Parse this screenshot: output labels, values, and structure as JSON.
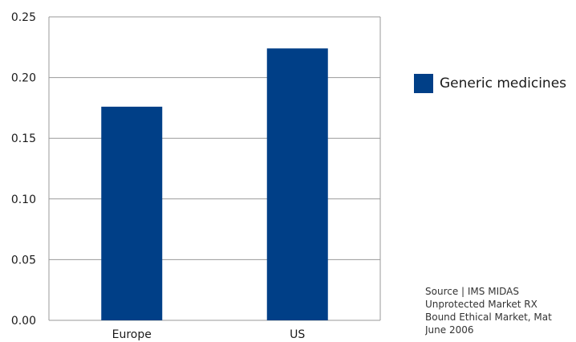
{
  "chart_data": {
    "type": "bar",
    "categories": [
      "Europe",
      "US"
    ],
    "series": [
      {
        "name": "Generic medicines",
        "values": [
          0.176,
          0.224
        ]
      }
    ],
    "ylim": [
      0,
      0.25
    ],
    "yticks": [
      "0.00",
      "0.05",
      "0.10",
      "0.15",
      "0.20",
      "0.25"
    ],
    "grid": true,
    "legend_position": "right",
    "bar_color": "#003f87"
  },
  "source": {
    "lines": [
      "Source | IMS MIDAS",
      "Unprotected Market RX",
      "Bound Ethical Market, Mat",
      "June 2006"
    ]
  }
}
